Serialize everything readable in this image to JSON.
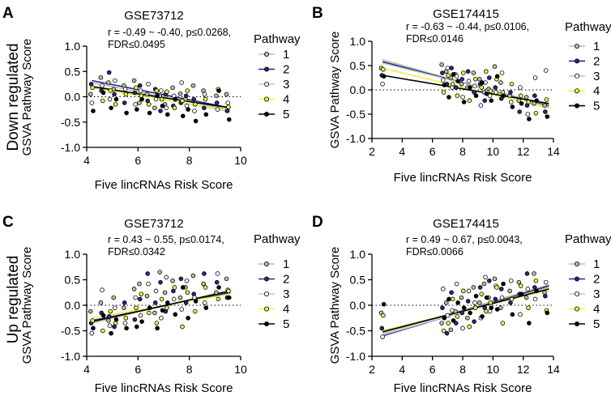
{
  "row_labels": [
    "Down regulated",
    "Up regulated"
  ],
  "legend_title": "Pathway",
  "series_colors": [
    "#b8bfa2",
    "#1f2a8a",
    "#ffffff",
    "#f2ef3c",
    "#000000"
  ],
  "chart_data": [
    {
      "panel": "A",
      "type": "scatter",
      "title": "GSE73712",
      "stats": [
        "r = -0.49 ~ -0.40, p≤0.0268,",
        "FDR≤0.0495"
      ],
      "xlabel": "Five lincRNAs Risk Score",
      "ylabel": "GSVA Pathway Score",
      "xlim": [
        4,
        10
      ],
      "ylim": [
        -1.0,
        1.0
      ],
      "xticks": [
        4,
        6,
        8,
        10
      ],
      "xtick_labels": [
        "4",
        "6",
        "8",
        "10"
      ],
      "yticks": [
        -1.0,
        -0.5,
        0.0,
        0.5,
        1.0
      ],
      "ytick_labels": [
        "-1.0",
        "-0.5",
        "0.0",
        "0.5",
        "1.0"
      ],
      "x": [
        4.2,
        4.6,
        4.9,
        5.1,
        5.5,
        5.9,
        6.1,
        6.4,
        6.7,
        6.9,
        7.1,
        7.4,
        7.7,
        7.9,
        8.2,
        8.6,
        9.1,
        9.5
      ],
      "series": [
        {
          "name": "1",
          "y": [
            0.05,
            0.38,
            0.28,
            0.15,
            0.22,
            0.32,
            -0.12,
            0.05,
            -0.22,
            0.02,
            -0.15,
            0.18,
            0.06,
            -0.05,
            0.22,
            0.12,
            0.02,
            0.05
          ],
          "fit": [
            0.28,
            -0.26
          ]
        },
        {
          "name": "2",
          "y": [
            0.25,
            0.12,
            0.48,
            0.05,
            -0.12,
            0.08,
            0.22,
            -0.08,
            0.15,
            -0.28,
            0.05,
            -0.18,
            -0.12,
            0.02,
            -0.05,
            -0.22,
            -0.12,
            -0.28
          ],
          "fit": [
            0.32,
            -0.22
          ]
        },
        {
          "name": "3",
          "y": [
            -0.12,
            0.22,
            -0.05,
            0.32,
            0.15,
            -0.15,
            0.12,
            0.25,
            -0.05,
            0.12,
            -0.22,
            0.02,
            0.28,
            -0.18,
            -0.28,
            0.05,
            -0.25,
            -0.12
          ],
          "fit": [
            0.22,
            -0.3
          ]
        },
        {
          "name": "4",
          "y": [
            0.18,
            -0.08,
            0.12,
            -0.15,
            0.05,
            0.18,
            0.02,
            -0.15,
            0.12,
            -0.05,
            0.1,
            -0.22,
            -0.08,
            0.12,
            -0.15,
            -0.05,
            0.15,
            -0.2
          ],
          "fit": [
            0.18,
            -0.28
          ]
        },
        {
          "name": "5",
          "y": [
            -0.28,
            0.08,
            -0.22,
            -0.05,
            -0.32,
            -0.25,
            -0.05,
            -0.32,
            0.02,
            -0.18,
            -0.35,
            -0.05,
            -0.38,
            -0.25,
            -0.48,
            -0.35,
            0.12,
            -0.45
          ],
          "fit": [
            0.2,
            -0.22
          ]
        }
      ]
    },
    {
      "panel": "B",
      "type": "scatter",
      "title": "GSE174415",
      "stats": [
        "r = -0.63 ~ -0.44, p≤0.0106,",
        "FDR≤0.0146"
      ],
      "xlabel": "Five lincRNAs Risk Score",
      "ylabel": "GSVA Pathway Score",
      "xlim": [
        2,
        14
      ],
      "ylim": [
        -1.0,
        1.0
      ],
      "xticks": [
        2,
        4,
        6,
        8,
        10,
        12,
        14
      ],
      "xtick_labels": [
        "2",
        "4",
        "6",
        "8",
        "10",
        "12",
        "14"
      ],
      "yticks": [
        -1.0,
        -0.5,
        0.0,
        0.5,
        1.0
      ],
      "ytick_labels": [
        "-1.0",
        "-0.5",
        "0.0",
        "0.5",
        "1.0"
      ],
      "x": [
        2.7,
        6.7,
        7.0,
        7.3,
        7.6,
        8.0,
        8.4,
        8.8,
        9.2,
        9.5,
        9.8,
        10.2,
        10.6,
        11.2,
        11.8,
        12.3,
        12.8,
        13.5
      ],
      "series": [
        {
          "name": "1",
          "y": [
            0.45,
            0.52,
            0.38,
            0.25,
            0.32,
            0.12,
            0.05,
            0.35,
            0.22,
            -0.05,
            0.02,
            0.48,
            0.15,
            -0.12,
            -0.22,
            -0.15,
            -0.28,
            -0.32
          ],
          "fit": [
            0.62,
            -0.35
          ]
        },
        {
          "name": "2",
          "y": [
            0.3,
            0.35,
            0.12,
            0.45,
            0.05,
            0.22,
            0.38,
            -0.05,
            0.12,
            -0.22,
            0.25,
            0.05,
            -0.18,
            -0.05,
            -0.45,
            -0.32,
            -0.12,
            -0.45
          ],
          "fit": [
            0.58,
            -0.32
          ]
        },
        {
          "name": "3",
          "y": [
            0.12,
            0.2,
            0.45,
            0.05,
            0.28,
            -0.15,
            0.18,
            0.08,
            -0.32,
            0.15,
            -0.12,
            -0.05,
            0.35,
            -0.25,
            0.05,
            -0.5,
            0.25,
            0.4
          ],
          "fit": [
            0.55,
            -0.3
          ]
        },
        {
          "name": "4",
          "y": [
            0.42,
            -0.05,
            0.3,
            0.12,
            -0.12,
            0.35,
            -0.22,
            0.22,
            0.05,
            0.38,
            -0.02,
            0.22,
            -0.05,
            0.12,
            -0.12,
            -0.25,
            -0.48,
            -0.2
          ],
          "fit": [
            0.45,
            -0.38
          ]
        },
        {
          "name": "5",
          "y": [
            0.28,
            0.1,
            -0.15,
            0.32,
            0.18,
            -0.25,
            0.05,
            -0.12,
            0.15,
            -0.08,
            -0.22,
            0.28,
            -0.12,
            -0.35,
            -0.28,
            -0.6,
            -0.22,
            -0.55
          ],
          "fit": [
            0.3,
            -0.28
          ]
        }
      ]
    },
    {
      "panel": "C",
      "type": "scatter",
      "title": "GSE73712",
      "stats": [
        "r = 0.43 ~ 0.55, p≤0.0174,",
        "FDR≤0.0342"
      ],
      "xlabel": "Five lincRNAs Risk Score",
      "ylabel": "GSVA Pathway Score",
      "xlim": [
        4,
        10
      ],
      "ylim": [
        -1.0,
        1.0
      ],
      "xticks": [
        4,
        6,
        8,
        10
      ],
      "xtick_labels": [
        "4",
        "6",
        "8",
        "10"
      ],
      "yticks": [
        -1.0,
        -0.5,
        0.0,
        0.5,
        1.0
      ],
      "ytick_labels": [
        "-1.0",
        "-0.5",
        "0.0",
        "0.5",
        "1.0"
      ],
      "x": [
        4.2,
        4.6,
        4.9,
        5.1,
        5.5,
        5.9,
        6.1,
        6.4,
        6.7,
        6.9,
        7.1,
        7.4,
        7.7,
        7.9,
        8.2,
        8.6,
        9.1,
        9.5
      ],
      "series": [
        {
          "name": "1",
          "y": [
            -0.12,
            0.05,
            -0.3,
            0.15,
            -0.05,
            0.32,
            0.42,
            0.18,
            -0.15,
            0.65,
            0.25,
            0.48,
            0.15,
            0.35,
            0.58,
            0.42,
            0.25,
            0.52
          ],
          "fit": [
            -0.35,
            0.3
          ]
        },
        {
          "name": "2",
          "y": [
            -0.35,
            -0.15,
            -0.22,
            -0.42,
            0.05,
            -0.28,
            0.12,
            0.62,
            0.05,
            0.45,
            -0.12,
            0.28,
            0.52,
            0.05,
            0.22,
            0.62,
            0.45,
            0.15
          ],
          "fit": [
            -0.3,
            0.25
          ]
        },
        {
          "name": "3",
          "y": [
            -0.55,
            0.3,
            -0.4,
            -0.05,
            -0.35,
            0.15,
            -0.2,
            0.42,
            0.28,
            -0.25,
            0.55,
            0.12,
            -0.08,
            0.48,
            0.15,
            0.05,
            0.62,
            0.3
          ],
          "fit": [
            -0.32,
            0.28
          ]
        },
        {
          "name": "4",
          "y": [
            -0.3,
            -0.5,
            -0.12,
            -0.35,
            -0.25,
            -0.05,
            0.22,
            -0.15,
            -0.35,
            0.12,
            -0.05,
            0.35,
            -0.42,
            0.25,
            -0.12,
            0.35,
            0.12,
            0.28
          ],
          "fit": [
            -0.25,
            0.22
          ]
        },
        {
          "name": "5",
          "y": [
            -0.45,
            -0.2,
            -0.55,
            -0.28,
            -0.45,
            -0.42,
            -0.32,
            -0.05,
            -0.45,
            -0.1,
            0.05,
            -0.18,
            0.35,
            -0.25,
            0.08,
            -0.05,
            0.35,
            0.15
          ],
          "fit": [
            -0.32,
            0.28
          ]
        }
      ]
    },
    {
      "panel": "D",
      "type": "scatter",
      "title": "GSE174415",
      "stats": [
        "r = 0.49 ~ 0.67, p≤0.0043,",
        "FDR≤0.0066"
      ],
      "xlabel": "Five lincRNAs Risk Score",
      "ylabel": "GSVA Pathway Score",
      "xlim": [
        2,
        14
      ],
      "ylim": [
        -1.0,
        1.0
      ],
      "xticks": [
        2,
        4,
        6,
        8,
        10,
        12,
        14
      ],
      "xtick_labels": [
        "2",
        "4",
        "6",
        "8",
        "10",
        "12",
        "14"
      ],
      "yticks": [
        -1.0,
        -0.5,
        0.0,
        0.5,
        1.0
      ],
      "ytick_labels": [
        "-1.0",
        "-0.5",
        "0.0",
        "0.5",
        "1.0"
      ],
      "x": [
        2.7,
        6.7,
        7.0,
        7.3,
        7.6,
        8.0,
        8.4,
        8.8,
        9.2,
        9.5,
        9.8,
        10.2,
        10.6,
        11.2,
        11.8,
        12.3,
        12.8,
        13.5
      ],
      "series": [
        {
          "name": "1",
          "y": [
            -0.15,
            -0.35,
            0.05,
            -0.48,
            -0.12,
            0.15,
            -0.25,
            0.35,
            0.05,
            0.42,
            0.15,
            0.52,
            -0.05,
            0.28,
            0.45,
            0.15,
            0.62,
            0.25
          ],
          "fit": [
            -0.55,
            0.4
          ]
        },
        {
          "name": "2",
          "y": [
            -0.45,
            -0.05,
            -0.55,
            0.25,
            -0.35,
            -0.15,
            0.08,
            -0.32,
            0.35,
            -0.05,
            0.48,
            0.12,
            0.32,
            0.05,
            0.22,
            0.62,
            0.35,
            0.18
          ],
          "fit": [
            -0.6,
            0.38
          ]
        },
        {
          "name": "3",
          "y": [
            -0.62,
            0.32,
            -0.2,
            -0.1,
            0.42,
            -0.45,
            0.28,
            0.05,
            -0.25,
            0.55,
            -0.12,
            0.38,
            0.15,
            0.48,
            -0.18,
            0.32,
            0.12,
            0.45
          ],
          "fit": [
            -0.58,
            0.35
          ]
        },
        {
          "name": "4",
          "y": [
            -0.2,
            -0.5,
            -0.35,
            0.12,
            -0.22,
            0.28,
            -0.42,
            -0.05,
            0.22,
            -0.12,
            0.05,
            0.35,
            -0.35,
            0.12,
            0.38,
            -0.05,
            0.48,
            -0.1
          ],
          "fit": [
            -0.5,
            0.3
          ]
        },
        {
          "name": "5",
          "y": [
            0.02,
            -0.25,
            0.12,
            -0.3,
            0.05,
            -0.05,
            -0.15,
            0.18,
            -0.22,
            0.15,
            -0.05,
            -0.08,
            0.42,
            -0.18,
            0.22,
            -0.35,
            0.28,
            -0.15
          ],
          "fit": [
            -0.52,
            0.32
          ]
        }
      ]
    }
  ]
}
